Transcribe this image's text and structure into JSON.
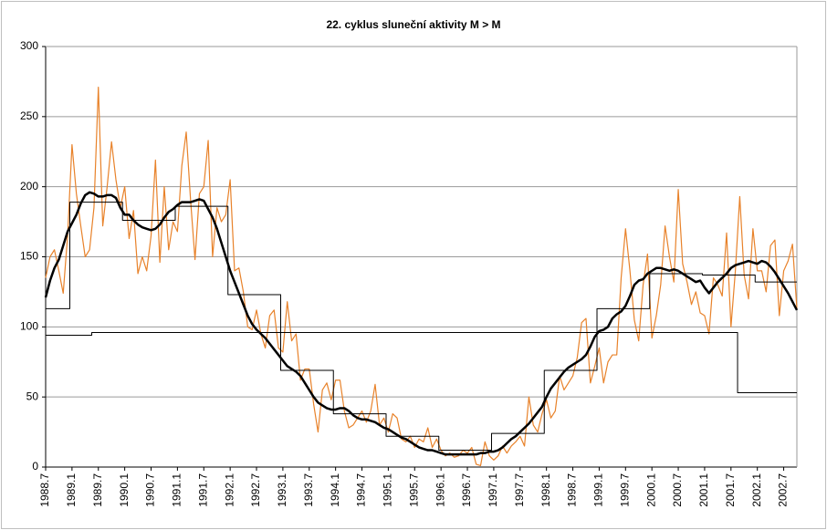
{
  "chart_data": {
    "type": "line",
    "title": "22. cyklus sluneční aktivity  M > M",
    "categories": [
      "1988.7",
      null,
      null,
      null,
      null,
      null,
      "1989.1",
      null,
      null,
      null,
      null,
      null,
      "1989.7",
      null,
      null,
      null,
      null,
      null,
      "1990.1",
      null,
      null,
      null,
      null,
      null,
      "1990.7",
      null,
      null,
      null,
      null,
      null,
      "1991.1",
      null,
      null,
      null,
      null,
      null,
      "1991.7",
      null,
      null,
      null,
      null,
      null,
      "1992.1",
      null,
      null,
      null,
      null,
      null,
      "1992.7",
      null,
      null,
      null,
      null,
      null,
      "1993.1",
      null,
      null,
      null,
      null,
      null,
      "1993.7",
      null,
      null,
      null,
      null,
      null,
      "1994.1",
      null,
      null,
      null,
      null,
      null,
      "1994.7",
      null,
      null,
      null,
      null,
      null,
      "1995.1",
      null,
      null,
      null,
      null,
      null,
      "1995.7",
      null,
      null,
      null,
      null,
      null,
      "1996.1",
      null,
      null,
      null,
      null,
      null,
      "1996.7",
      null,
      null,
      null,
      null,
      null,
      "1997.1",
      null,
      null,
      null,
      null,
      null,
      "1997.7",
      null,
      null,
      null,
      null,
      null,
      "1998.1",
      null,
      null,
      null,
      null,
      null,
      "1998.7",
      null,
      null,
      null,
      null,
      null,
      "1999.1",
      null,
      null,
      null,
      null,
      null,
      "1999.7",
      null,
      null,
      null,
      null,
      null,
      "2000.1",
      null,
      null,
      null,
      null,
      null,
      "2000.7",
      null,
      null,
      null,
      null,
      null,
      "2001.1",
      null,
      null,
      null,
      null,
      null,
      "2001.7",
      null,
      null,
      null,
      null,
      null,
      "2002.1",
      null,
      null,
      null,
      null,
      null,
      "2002.7",
      null,
      null,
      null
    ],
    "series": [
      {
        "color": "#e8822a",
        "width": 1.2,
        "drawstyle": "line",
        "values": [
          135,
          150,
          155,
          140,
          124,
          165,
          230,
          195,
          172,
          150,
          155,
          185,
          271,
          172,
          200,
          232,
          205,
          185,
          200,
          163,
          183,
          138,
          150,
          140,
          165,
          219,
          146,
          200,
          155,
          175,
          168,
          215,
          239,
          190,
          148,
          195,
          200,
          233,
          150,
          185,
          175,
          180,
          205,
          140,
          142,
          125,
          100,
          98,
          112,
          95,
          85,
          108,
          112,
          85,
          82,
          118,
          90,
          95,
          62,
          70,
          70,
          45,
          25,
          55,
          60,
          48,
          62,
          62,
          40,
          28,
          30,
          35,
          40,
          32,
          40,
          59,
          30,
          35,
          25,
          38,
          35,
          20,
          18,
          22,
          14,
          20,
          18,
          28,
          14,
          20,
          12,
          8,
          10,
          7,
          8,
          12,
          10,
          14,
          2,
          1,
          18,
          8,
          5,
          8,
          15,
          10,
          15,
          18,
          22,
          15,
          50,
          30,
          25,
          38,
          48,
          35,
          40,
          65,
          55,
          60,
          65,
          78,
          103,
          106,
          60,
          72,
          85,
          60,
          75,
          80,
          80,
          135,
          170,
          140,
          105,
          90,
          130,
          152,
          92,
          108,
          130,
          172,
          150,
          132,
          198,
          145,
          132,
          116,
          125,
          110,
          108,
          95,
          135,
          130,
          122,
          167,
          100,
          140,
          193,
          137,
          120,
          170,
          140,
          140,
          125,
          158,
          162,
          108,
          140,
          147,
          159,
          113
        ]
      },
      {
        "color": "#000000",
        "width": 2.5,
        "drawstyle": "line",
        "values": [
          121,
          133,
          142,
          148,
          158,
          168,
          174,
          180,
          188,
          194,
          196,
          195,
          193,
          193,
          194,
          194,
          192,
          185,
          180,
          180,
          176,
          173,
          171,
          170,
          169,
          170,
          173,
          178,
          182,
          184,
          187,
          189,
          189,
          189,
          190,
          191,
          190,
          184,
          178,
          170,
          160,
          150,
          140,
          132,
          124,
          116,
          108,
          102,
          98,
          95,
          92,
          88,
          84,
          80,
          76,
          72,
          70,
          68,
          65,
          60,
          55,
          50,
          46,
          44,
          42,
          41,
          41,
          42,
          42,
          40,
          37,
          35,
          34,
          34,
          33,
          32,
          30,
          28,
          27,
          25,
          23,
          21,
          20,
          18,
          16,
          14,
          13,
          12,
          12,
          11,
          10,
          9,
          9,
          9,
          9,
          9,
          9,
          9,
          9,
          10,
          10,
          11,
          11,
          12,
          14,
          17,
          20,
          22,
          25,
          28,
          31,
          35,
          39,
          43,
          50,
          56,
          60,
          64,
          68,
          71,
          73,
          75,
          77,
          80,
          86,
          93,
          97,
          98,
          100,
          106,
          109,
          111,
          115,
          122,
          130,
          133,
          134,
          138,
          140,
          142,
          142,
          141,
          140,
          141,
          140,
          138,
          136,
          134,
          132,
          133,
          128,
          124,
          128,
          132,
          135,
          138,
          142,
          144,
          145,
          146,
          147,
          146,
          145,
          147,
          146,
          143,
          139,
          134,
          129,
          124,
          118,
          112
        ]
      },
      {
        "color": "#000000",
        "width": 1,
        "drawstyle": "steps",
        "values": [
          113,
          113,
          113,
          113,
          113,
          113,
          189,
          189,
          189,
          189,
          189,
          189,
          189,
          189,
          189,
          189,
          189,
          189,
          176,
          176,
          176,
          176,
          176,
          176,
          176,
          176,
          176,
          176,
          176,
          176,
          186,
          186,
          186,
          186,
          186,
          186,
          186,
          186,
          186,
          186,
          186,
          186,
          123,
          123,
          123,
          123,
          123,
          123,
          123,
          123,
          123,
          123,
          123,
          123,
          69,
          69,
          69,
          69,
          69,
          69,
          69,
          69,
          69,
          69,
          69,
          69,
          38,
          38,
          38,
          38,
          38,
          38,
          38,
          38,
          38,
          38,
          38,
          38,
          22,
          22,
          22,
          22,
          22,
          22,
          22,
          22,
          22,
          22,
          22,
          22,
          12,
          12,
          12,
          12,
          12,
          12,
          12,
          12,
          12,
          12,
          12,
          12,
          24,
          24,
          24,
          24,
          24,
          24,
          24,
          24,
          24,
          24,
          24,
          24,
          69,
          69,
          69,
          69,
          69,
          69,
          69,
          69,
          69,
          69,
          69,
          69,
          113,
          113,
          113,
          113,
          113,
          113,
          113,
          113,
          113,
          113,
          113,
          113,
          138,
          138,
          138,
          138,
          138,
          138,
          138,
          138,
          138,
          138,
          138,
          138,
          137,
          137,
          137,
          137,
          137,
          137,
          137,
          137,
          137,
          137,
          137,
          137,
          132,
          132,
          132,
          132,
          132,
          132,
          132,
          132,
          132,
          132
        ]
      },
      {
        "color": "#000000",
        "width": 1,
        "drawstyle": "steps",
        "values": [
          94,
          94,
          94,
          94,
          94,
          94,
          94,
          94,
          94,
          94,
          94,
          96,
          96,
          96,
          96,
          96,
          96,
          96,
          96,
          96,
          96,
          96,
          96,
          96,
          96,
          96,
          96,
          96,
          96,
          96,
          96,
          96,
          96,
          96,
          96,
          96,
          96,
          96,
          96,
          96,
          96,
          96,
          96,
          96,
          96,
          96,
          96,
          96,
          96,
          96,
          96,
          96,
          96,
          96,
          96,
          96,
          96,
          96,
          96,
          96,
          96,
          96,
          96,
          96,
          96,
          96,
          96,
          96,
          96,
          96,
          96,
          96,
          96,
          96,
          96,
          96,
          96,
          96,
          96,
          96,
          96,
          96,
          96,
          96,
          96,
          96,
          96,
          96,
          96,
          96,
          96,
          96,
          96,
          96,
          96,
          96,
          96,
          96,
          96,
          96,
          96,
          96,
          96,
          96,
          96,
          96,
          96,
          96,
          96,
          96,
          96,
          96,
          96,
          96,
          96,
          96,
          96,
          96,
          96,
          96,
          96,
          96,
          96,
          96,
          96,
          96,
          96,
          96,
          96,
          96,
          96,
          96,
          96,
          96,
          96,
          96,
          96,
          96,
          96,
          96,
          96,
          96,
          96,
          96,
          96,
          96,
          96,
          96,
          96,
          96,
          96,
          96,
          96,
          96,
          96,
          96,
          96,
          96,
          53,
          53,
          53,
          53,
          53,
          53,
          53,
          53,
          53,
          53,
          53,
          53,
          53,
          53
        ]
      }
    ],
    "ylim": [
      0,
      300
    ],
    "yticks": [
      0,
      50,
      100,
      150,
      200,
      250,
      300
    ],
    "grid": true
  }
}
